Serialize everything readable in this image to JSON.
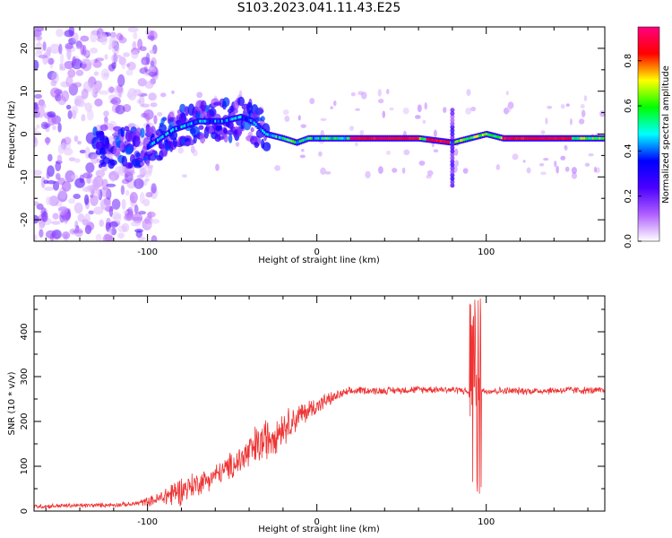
{
  "title": "S103.2023.041.11.43.E25",
  "colors": {
    "snr_line": "#ee3333",
    "spectrum_background": "#ffffff",
    "axis": "#000000"
  },
  "chart_data": [
    {
      "type": "heatmap",
      "title": "S103.2023.041.11.43.E25",
      "xlabel": "Height of straight line (km)",
      "ylabel": "Frequency (Hz)",
      "xlim": [
        -167,
        170
      ],
      "ylim": [
        -25,
        25
      ],
      "x_ticks": [
        -100,
        0,
        100
      ],
      "y_ticks": [
        -20,
        -10,
        0,
        10,
        20
      ],
      "x_tick_labels": [
        "-100",
        "0",
        "100"
      ],
      "y_tick_labels": [
        "-20",
        "-10",
        "0",
        "10",
        "20"
      ],
      "colormap": "rainbow (white-purple-blue-cyan-green-yellow-red-pink)",
      "description_features": {
        "dominant_frequency_hz": -1,
        "noisy_region_x": [
          -167,
          -95
        ],
        "rising_track": [
          [
            -130,
            -3
          ],
          [
            -100,
            -3
          ],
          [
            -85,
            1
          ],
          [
            -70,
            3
          ],
          [
            -55,
            3
          ],
          [
            -45,
            4
          ],
          [
            -38,
            3
          ],
          [
            -30,
            0
          ],
          [
            -20,
            -1
          ],
          [
            -12,
            -2
          ],
          [
            -5,
            -1
          ],
          [
            0,
            -1
          ],
          [
            20,
            -1
          ],
          [
            60,
            -1
          ],
          [
            80,
            -2
          ],
          [
            90,
            -1
          ],
          [
            100,
            0
          ],
          [
            110,
            -1
          ],
          [
            160,
            -1
          ]
        ],
        "bright_segments": [
          [
            20,
            60
          ],
          [
            65,
            78
          ],
          [
            110,
            150
          ]
        ],
        "spike_x": 80
      }
    },
    {
      "type": "colorbar",
      "label": "Normalized spectral amplitude",
      "range": [
        0.0,
        0.95
      ],
      "ticks": [
        0.0,
        0.2,
        0.4,
        0.6,
        0.8
      ],
      "tick_labels": [
        "0.0",
        "0.2",
        "0.4",
        "0.6",
        "0.8"
      ],
      "stops": [
        "#ffffff",
        "#b05fff",
        "#4a00ff",
        "#0000ff",
        "#00ffff",
        "#00ff00",
        "#ffff00",
        "#ff0000",
        "#ff0080"
      ]
    },
    {
      "type": "line",
      "xlabel": "Height of straight line (km)",
      "ylabel": "SNR (10 * v/v)",
      "xlim": [
        -167,
        170
      ],
      "ylim": [
        0,
        480
      ],
      "x_ticks": [
        -100,
        0,
        100
      ],
      "y_ticks": [
        0,
        100,
        200,
        300,
        400
      ],
      "x_tick_labels": [
        "-100",
        "0",
        "100"
      ],
      "y_tick_labels": [
        "0",
        "100",
        "200",
        "300",
        "400"
      ],
      "series": [
        {
          "name": "SNR",
          "x": [
            -167,
            -150,
            -130,
            -110,
            -95,
            -85,
            -75,
            -65,
            -55,
            -45,
            -35,
            -25,
            -15,
            -5,
            5,
            15,
            25,
            35,
            50,
            70,
            85,
            90,
            93,
            95,
            100,
            110,
            130,
            150,
            170
          ],
          "y": [
            10,
            12,
            13,
            15,
            25,
            40,
            55,
            70,
            90,
            115,
            145,
            175,
            200,
            225,
            245,
            262,
            270,
            268,
            270,
            272,
            270,
            265,
            250,
            270,
            268,
            268,
            268,
            270,
            268
          ],
          "noise_amplitude": [
            6,
            6,
            6,
            6,
            15,
            40,
            35,
            30,
            30,
            45,
            60,
            55,
            40,
            30,
            20,
            12,
            10,
            10,
            10,
            10,
            10,
            10,
            10,
            10,
            10,
            10,
            10,
            10,
            10
          ],
          "spike_region": {
            "x": [
              90,
              97
            ],
            "y_min": 20,
            "y_max": 480
          }
        }
      ]
    }
  ]
}
